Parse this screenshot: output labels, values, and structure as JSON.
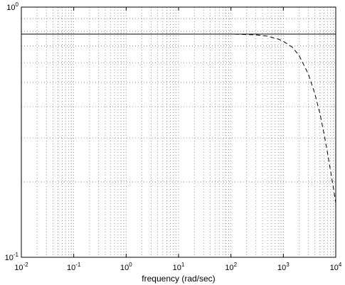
{
  "chart_data": {
    "type": "line",
    "xscale": "log",
    "yscale": "log",
    "xlim": [
      0.01,
      10000
    ],
    "ylim": [
      0.1,
      1
    ],
    "grid": true,
    "xlabel": "frequency (rad/sec)",
    "ylabel": "",
    "title": "",
    "x_ticks": [
      {
        "base": "10",
        "exp": "-2"
      },
      {
        "base": "10",
        "exp": "-1"
      },
      {
        "base": "10",
        "exp": "0"
      },
      {
        "base": "10",
        "exp": "1"
      },
      {
        "base": "10",
        "exp": "2"
      },
      {
        "base": "10",
        "exp": "3"
      },
      {
        "base": "10",
        "exp": "4"
      }
    ],
    "y_ticks": [
      {
        "base": "10",
        "exp": "-1"
      },
      {
        "base": "10",
        "exp": "0"
      }
    ],
    "series": [
      {
        "style": "solid",
        "x": [
          0.01,
          10000
        ],
        "y": [
          0.78,
          0.78
        ]
      },
      {
        "style": "dashed",
        "x": [
          0.01,
          100,
          300,
          500,
          800,
          1000,
          1500,
          2000,
          3000,
          4000,
          5000,
          6000,
          7000,
          8000,
          9000,
          10000
        ],
        "y": [
          0.78,
          0.78,
          0.775,
          0.765,
          0.745,
          0.73,
          0.69,
          0.64,
          0.54,
          0.45,
          0.375,
          0.31,
          0.26,
          0.22,
          0.19,
          0.165
        ]
      }
    ]
  }
}
